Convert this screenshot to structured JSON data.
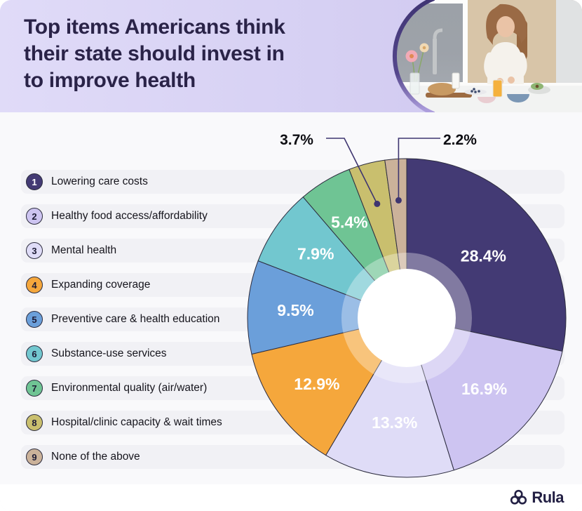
{
  "header": {
    "title": "Top items Americans think their state should invest in to improve health",
    "title_lines": [
      "Top items Americans think",
      "their state should invest in",
      "to improve health"
    ],
    "background_colors": [
      "#e0dbf8",
      "#cdc5ee"
    ],
    "photo_description": "woman preparing healthy breakfast in kitchen"
  },
  "legend": {
    "items": [
      {
        "num": "1",
        "label": "Lowering care costs",
        "color": "#433a74",
        "num_color": "#ffffff"
      },
      {
        "num": "2",
        "label": "Healthy food access/affordability",
        "color": "#cdc4f1",
        "num_color": "#1d1b35"
      },
      {
        "num": "3",
        "label": "Mental health",
        "color": "#dfdcf7",
        "num_color": "#1d1b35"
      },
      {
        "num": "4",
        "label": "Expanding coverage",
        "color": "#f5a73c",
        "num_color": "#1d1b35"
      },
      {
        "num": "5",
        "label": "Preventive care & health education",
        "color": "#6b9fda",
        "num_color": "#1d1b35"
      },
      {
        "num": "6",
        "label": "Substance-use services",
        "color": "#72c7cf",
        "num_color": "#1d1b35"
      },
      {
        "num": "7",
        "label": "Environmental quality (air/water)",
        "color": "#6fc494",
        "num_color": "#1d1b35"
      },
      {
        "num": "8",
        "label": "Hospital/clinic capacity & wait times",
        "color": "#c9bf6e",
        "num_color": "#1d1b35"
      },
      {
        "num": "9",
        "label": "None of the above",
        "color": "#cbb29a",
        "num_color": "#1d1b35"
      }
    ]
  },
  "chart_data": {
    "type": "pie",
    "title": "Top items Americans think their state should invest in to improve health",
    "categories": [
      "Lowering care costs",
      "Healthy food access/affordability",
      "Mental health",
      "Expanding coverage",
      "Preventive care & health education",
      "Substance-use services",
      "Environmental quality (air/water)",
      "Hospital/clinic capacity & wait times",
      "None of the above"
    ],
    "values": [
      28.4,
      16.9,
      13.3,
      12.9,
      9.5,
      7.9,
      5.4,
      3.7,
      2.2
    ],
    "labels": [
      "28.4%",
      "16.9%",
      "13.3%",
      "12.9%",
      "9.5%",
      "7.9%",
      "5.4%",
      "3.7%",
      "2.2%"
    ],
    "colors": [
      "#433a74",
      "#cdc4f1",
      "#dfdcf7",
      "#f5a73c",
      "#6b9fda",
      "#72c7cf",
      "#6fc494",
      "#c9bf6e",
      "#cbb29a"
    ],
    "start_angle_deg": 0,
    "direction": "clockwise",
    "donut_hole": true,
    "legend_position": "left",
    "callout_indices": [
      7,
      8
    ],
    "label_color_inside": "#ffffff",
    "label_color_outside": "#0d0d12",
    "slice_border_color": "#2c2c3e",
    "leader_line_color": "#3e3570"
  },
  "footer": {
    "brand": "Rula"
  }
}
